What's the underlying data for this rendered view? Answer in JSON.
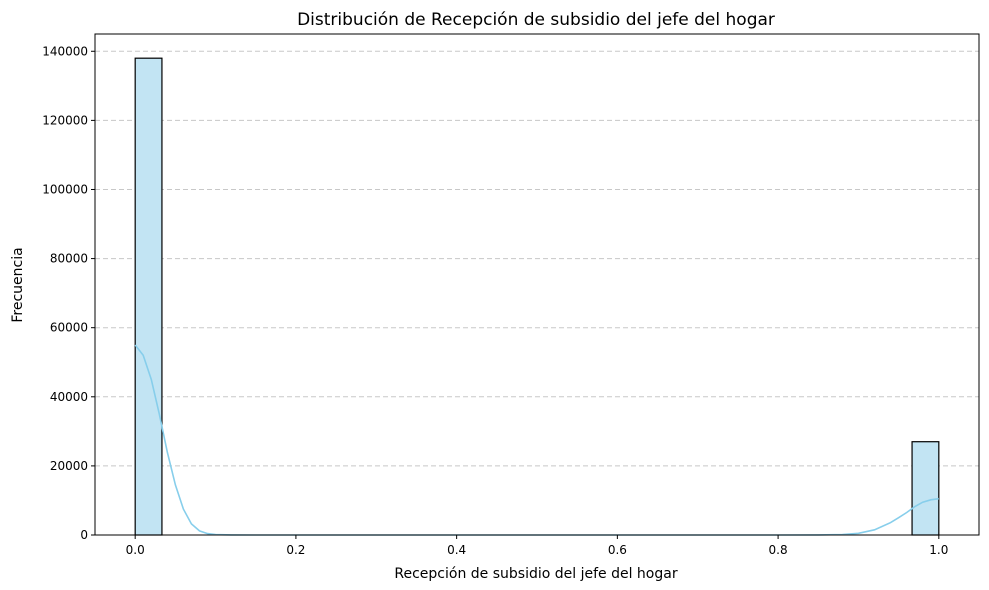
{
  "chart_data": {
    "type": "bar",
    "subtype": "histogram-with-kde",
    "title": "Distribución de Recepción de subsidio del jefe del hogar",
    "xlabel": "Recepción de subsidio del jefe del hogar",
    "ylabel": "Frecuencia",
    "xlim": [
      -0.05,
      1.05
    ],
    "ylim": [
      0,
      145000
    ],
    "xticks": [
      "0.0",
      "0.2",
      "0.4",
      "0.6",
      "0.8",
      "1.0"
    ],
    "yticks": [
      "0",
      "20000",
      "40000",
      "60000",
      "80000",
      "100000",
      "120000",
      "140000"
    ],
    "grid": "y-dashed",
    "bin_width": 0.0333,
    "bins": [
      {
        "x0": 0.0,
        "x1": 0.0333,
        "count": 138000
      },
      {
        "x0": 0.9667,
        "x1": 1.0,
        "count": 27000
      }
    ],
    "kde": {
      "x": [
        0.0,
        0.01,
        0.02,
        0.03,
        0.04,
        0.05,
        0.06,
        0.07,
        0.08,
        0.09,
        0.1,
        0.12,
        0.15,
        0.2,
        0.4,
        0.6,
        0.8,
        0.85,
        0.88,
        0.9,
        0.92,
        0.94,
        0.95,
        0.96,
        0.97,
        0.98,
        0.99,
        1.0
      ],
      "y": [
        55000,
        52000,
        45000,
        35000,
        24000,
        14500,
        7500,
        3200,
        1200,
        400,
        120,
        20,
        0,
        0,
        0,
        0,
        0,
        20,
        150,
        500,
        1500,
        3600,
        5000,
        6500,
        8200,
        9500,
        10200,
        10500
      ]
    },
    "colors": {
      "bar_fill": "#c2e4f3",
      "bar_edge": "#000000",
      "kde_line": "#87ceeb",
      "grid": "#c8c8c8"
    }
  }
}
